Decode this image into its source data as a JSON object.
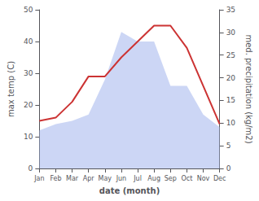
{
  "chart_data": {
    "type": "line",
    "xlabel": "date (month)",
    "ylabel": "max temp (C)",
    "y2label": "med. precipitation (kg/m2)",
    "categories": [
      "Jan",
      "Feb",
      "Mar",
      "Apr",
      "May",
      "Jun",
      "Jul",
      "Aug",
      "Sep",
      "Oct",
      "Nov",
      "Dec"
    ],
    "series": [
      {
        "type": "area",
        "color": "#aabbee",
        "axis": "y",
        "values": [
          12,
          14,
          15,
          17,
          28,
          43,
          40,
          40,
          26,
          26,
          17,
          13
        ]
      },
      {
        "type": "line",
        "color": "#cc3333",
        "axis": "y",
        "values": [
          15,
          16,
          21,
          29,
          29,
          35,
          40,
          45,
          45,
          38,
          26,
          14
        ]
      }
    ],
    "ylim": [
      0,
      50
    ],
    "yticks": [
      0,
      10,
      20,
      30,
      40,
      50
    ],
    "y2lim": [
      0,
      35
    ],
    "y2ticks": [
      0,
      5,
      10,
      15,
      20,
      25,
      30,
      35
    ],
    "grid": false
  }
}
